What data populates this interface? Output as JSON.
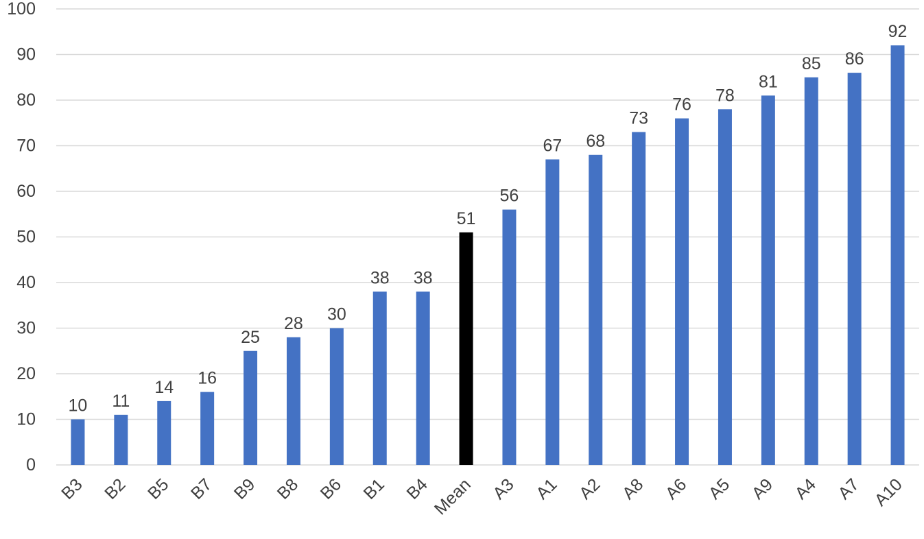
{
  "chart_data": {
    "type": "bar",
    "title": "",
    "xlabel": "",
    "ylabel": "",
    "categories": [
      "B3",
      "B2",
      "B5",
      "B7",
      "B9",
      "B8",
      "B6",
      "B1",
      "B4",
      "Mean",
      "A3",
      "A1",
      "A2",
      "A8",
      "A6",
      "A5",
      "A9",
      "A4",
      "A7",
      "A10"
    ],
    "values": [
      10,
      11,
      14,
      16,
      25,
      28,
      30,
      38,
      38,
      51,
      56,
      67,
      68,
      73,
      76,
      78,
      81,
      85,
      86,
      92
    ],
    "ylim": [
      0,
      100
    ],
    "yticks": [
      0,
      10,
      20,
      30,
      40,
      50,
      60,
      70,
      80,
      90,
      100
    ],
    "grid": true,
    "legend": "none",
    "data_labels": true,
    "colors": {
      "bar": "#4472C4",
      "highlight_bar": "#000000",
      "highlight_category": "Mean",
      "grid": "#D9D9D9",
      "text": "#404040"
    }
  }
}
